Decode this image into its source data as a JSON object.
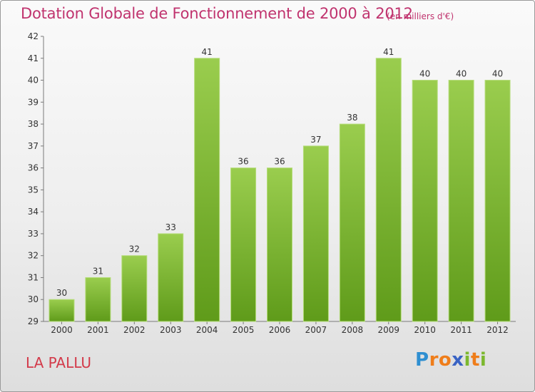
{
  "header": {
    "title": "Dotation Globale de Fonctionnement de 2000 à 2012",
    "unit": "(en milliers d'€)"
  },
  "footer": {
    "commune": "LA PALLU",
    "logo": "Proxiti"
  },
  "colors": {
    "bar_top": "#9acd4e",
    "bar_bottom": "#5f9b1a",
    "title": "#c0336e",
    "commune": "#d33a4a"
  },
  "chart_data": {
    "type": "bar",
    "title": "Dotation Globale de Fonctionnement de 2000 à 2012",
    "subtitle": "(en milliers d'€)",
    "categories": [
      "2000",
      "2001",
      "2002",
      "2003",
      "2004",
      "2005",
      "2006",
      "2007",
      "2008",
      "2009",
      "2010",
      "2011",
      "2012"
    ],
    "values": [
      30,
      31,
      32,
      33,
      41,
      36,
      36,
      37,
      38,
      41,
      40,
      40,
      40
    ],
    "data_labels": [
      "30",
      "31",
      "32",
      "33",
      "41",
      "36",
      "36",
      "37",
      "38",
      "41",
      "40",
      "40",
      "40"
    ],
    "ylim": [
      29,
      42
    ],
    "yticks": [
      29,
      30,
      31,
      32,
      33,
      34,
      35,
      36,
      37,
      38,
      39,
      40,
      41,
      42
    ],
    "grid": false
  }
}
